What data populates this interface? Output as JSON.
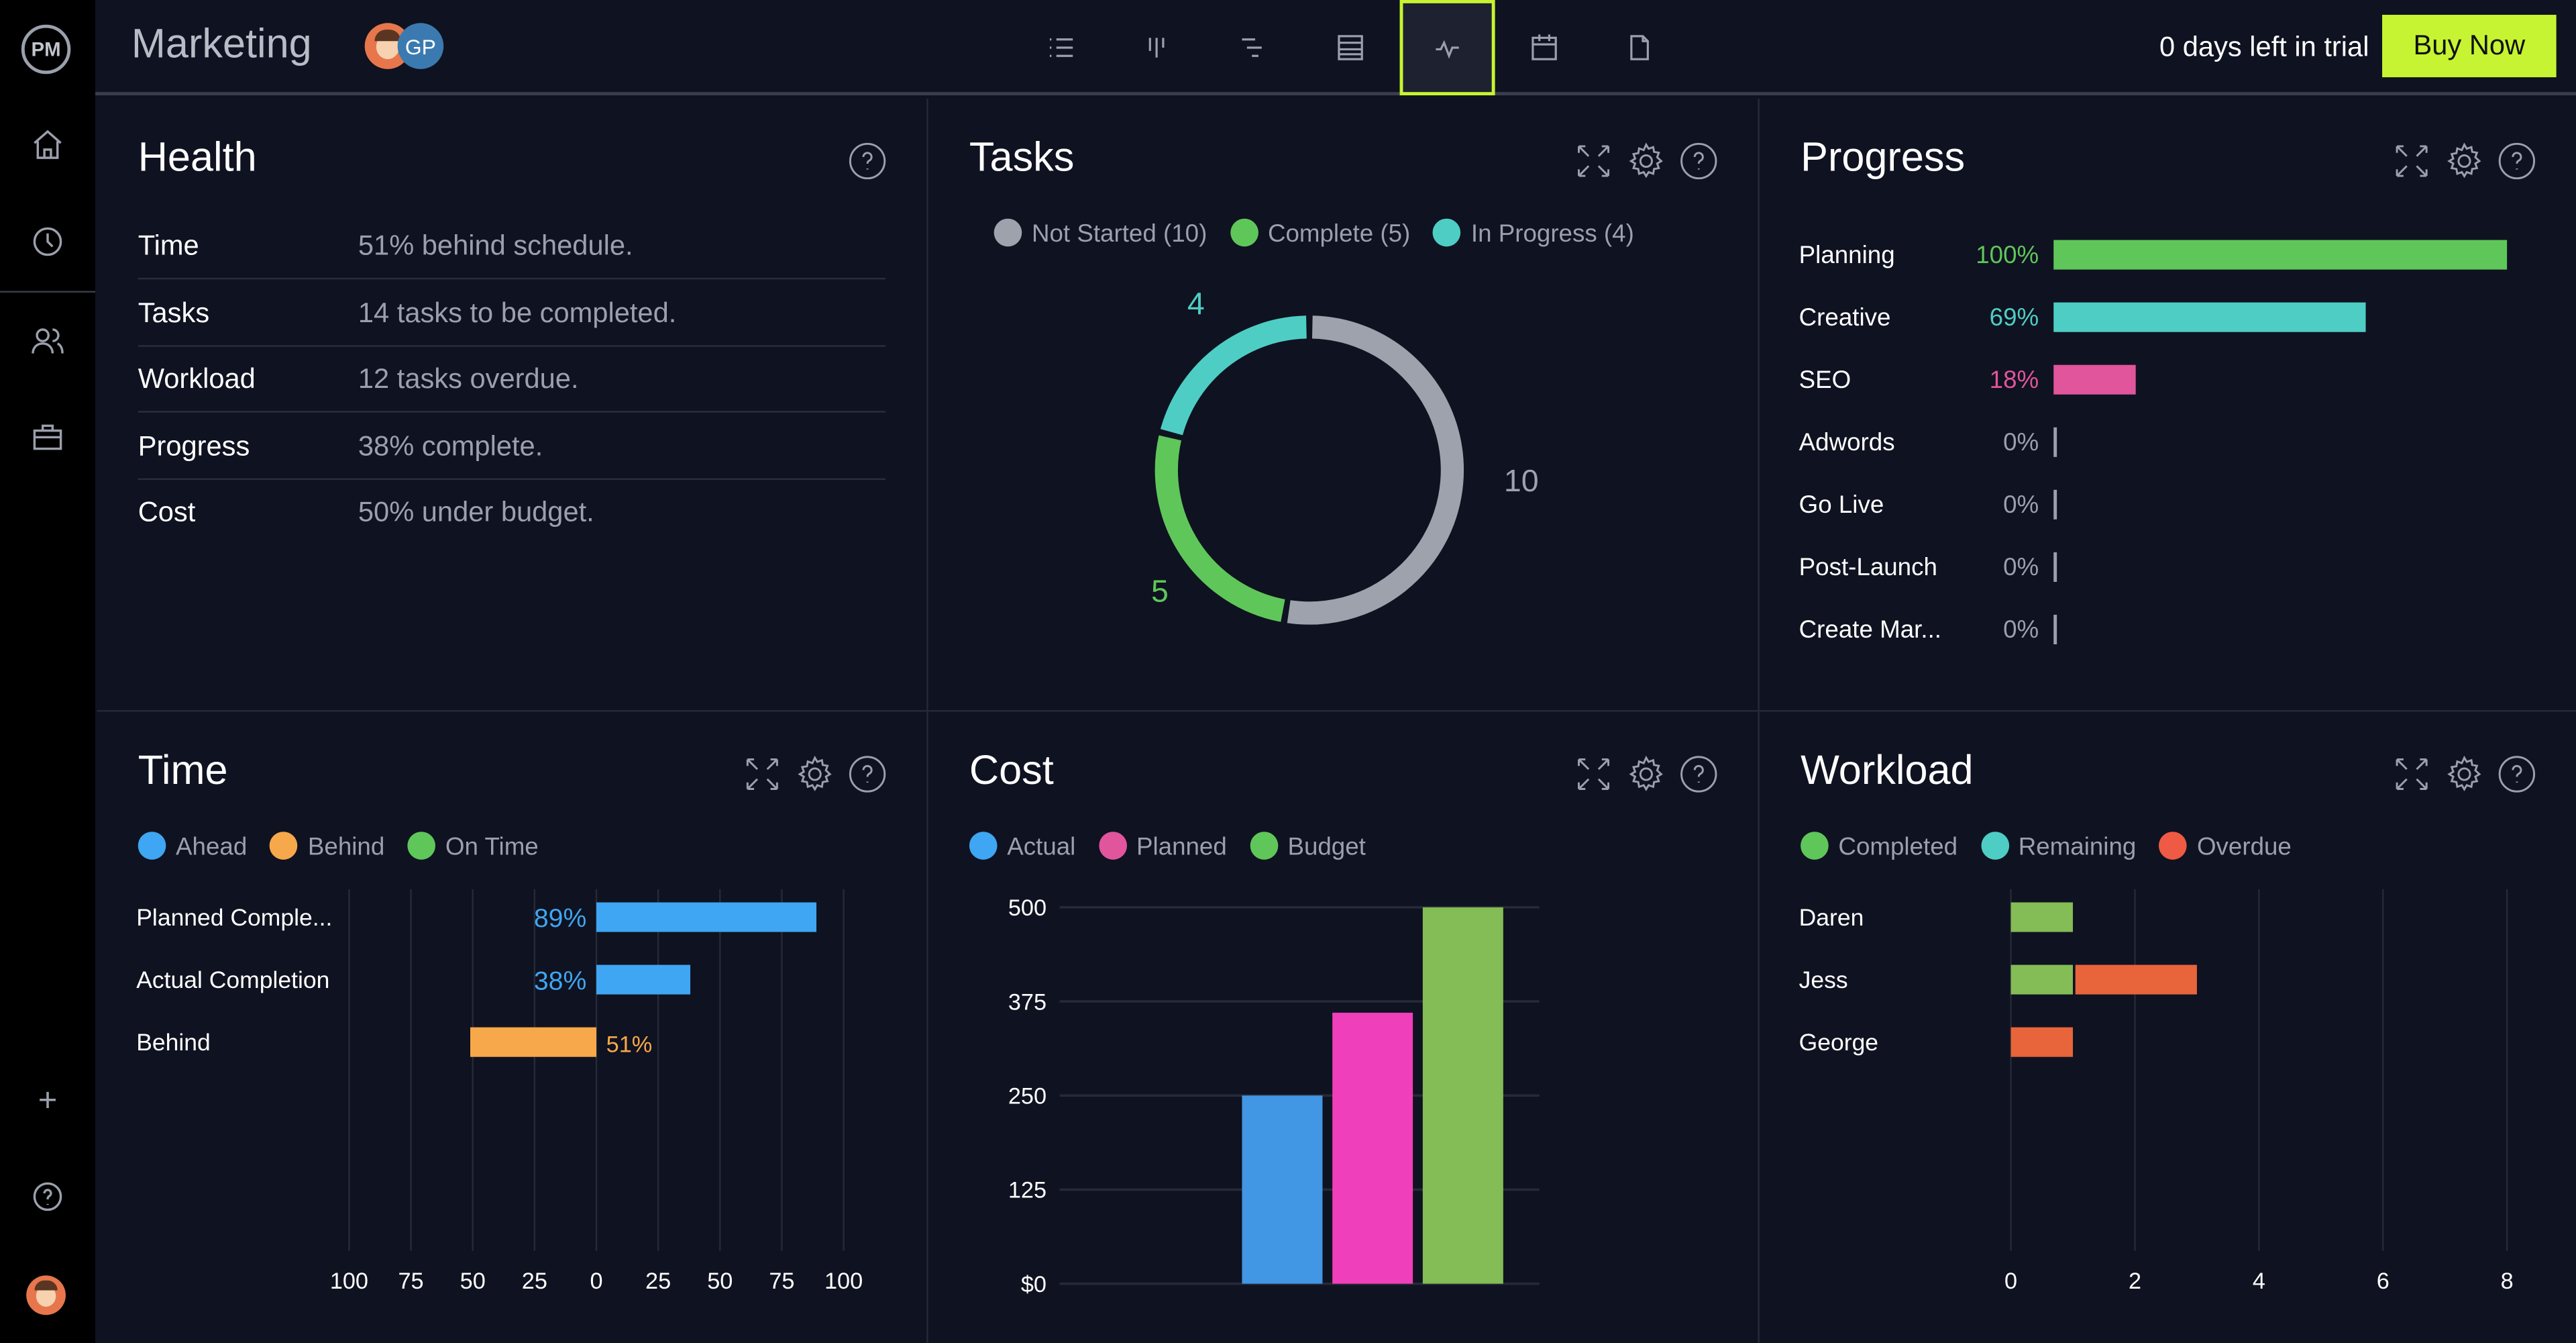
{
  "app": {
    "logo": "PM",
    "project_title": "Marketing",
    "avatar_initials": "GP",
    "trial_text": "0 days left in trial",
    "buy_label": "Buy Now",
    "accent": "#c6f432"
  },
  "toolbar": {
    "views": [
      "list-icon",
      "board-icon",
      "gantt-icon",
      "table-icon",
      "dashboard-icon",
      "calendar-icon",
      "file-icon"
    ],
    "active": "dashboard-icon"
  },
  "sidebar": {
    "items": [
      "home-icon",
      "clock-icon",
      "users-icon",
      "briefcase-icon"
    ],
    "bottom": [
      "plus-icon",
      "help-icon",
      "user-avatar"
    ]
  },
  "health": {
    "title": "Health",
    "rows": [
      {
        "label": "Time",
        "value": "51% behind schedule."
      },
      {
        "label": "Tasks",
        "value": "14 tasks to be completed."
      },
      {
        "label": "Workload",
        "value": "12 tasks overdue."
      },
      {
        "label": "Progress",
        "value": "38% complete."
      },
      {
        "label": "Cost",
        "value": "50% under budget."
      }
    ]
  },
  "tasks": {
    "title": "Tasks",
    "legend": [
      "Not Started (10)",
      "Complete (5)",
      "In Progress (4)"
    ],
    "labels": {
      "not_started": "10",
      "complete": "5",
      "in_progress": "4"
    }
  },
  "progress": {
    "title": "Progress",
    "rows": [
      {
        "label": "Planning",
        "pct": "100%",
        "value": 100,
        "color": "#5fc65a"
      },
      {
        "label": "Creative",
        "pct": "69%",
        "value": 69,
        "color": "#4ecdc4"
      },
      {
        "label": "SEO",
        "pct": "18%",
        "value": 18,
        "color": "#e0559b"
      },
      {
        "label": "Adwords",
        "pct": "0%",
        "value": 0,
        "color": "#9aa0ac"
      },
      {
        "label": "Go Live",
        "pct": "0%",
        "value": 0,
        "color": "#9aa0ac"
      },
      {
        "label": "Post-Launch",
        "pct": "0%",
        "value": 0,
        "color": "#9aa0ac"
      },
      {
        "label": "Create Mar...",
        "pct": "0%",
        "value": 0,
        "color": "#9aa0ac"
      }
    ]
  },
  "time": {
    "title": "Time",
    "legend": [
      "Ahead",
      "Behind",
      "On Time"
    ]
  },
  "cost": {
    "title": "Cost",
    "legend": [
      "Actual",
      "Planned",
      "Budget"
    ]
  },
  "workload": {
    "title": "Workload",
    "legend": [
      "Completed",
      "Remaining",
      "Overdue"
    ]
  },
  "chart_data": [
    {
      "type": "pie",
      "title": "Tasks",
      "donut": true,
      "slices": [
        {
          "name": "Not Started",
          "value": 10,
          "color": "#9ea2ad"
        },
        {
          "name": "Complete",
          "value": 5,
          "color": "#5fc65a"
        },
        {
          "name": "In Progress",
          "value": 4,
          "color": "#4ecdc4"
        }
      ]
    },
    {
      "type": "bar",
      "title": "Time",
      "orientation": "horizontal",
      "categories": [
        "Planned Comple...",
        "Actual Completion",
        "Behind"
      ],
      "values": [
        89,
        38,
        -51
      ],
      "data_labels": [
        "89%",
        "38%",
        "51%"
      ],
      "colors": [
        "#3ea6f2",
        "#3ea6f2",
        "#f7a84a"
      ],
      "xlim": [
        -100,
        100
      ],
      "xticks": [
        "100",
        "75",
        "50",
        "25",
        "0",
        "25",
        "50",
        "75",
        "100"
      ],
      "grid": true
    },
    {
      "type": "bar",
      "title": "Cost",
      "categories": [
        "Actual",
        "Planned",
        "Budget"
      ],
      "values": [
        250,
        360,
        500
      ],
      "colors": [
        "#4197e3",
        "#f03fbb",
        "#84bc56"
      ],
      "ylim": [
        0,
        500
      ],
      "yticks": [
        "$0",
        "125",
        "250",
        "375",
        "500"
      ],
      "grid": true
    },
    {
      "type": "bar",
      "title": "Workload",
      "orientation": "horizontal",
      "stacked": true,
      "categories": [
        "Daren",
        "Jess",
        "George"
      ],
      "series": [
        {
          "name": "Completed",
          "values": [
            1,
            1,
            0
          ],
          "color": "#84bc56"
        },
        {
          "name": "Remaining",
          "values": [
            0,
            0,
            0
          ],
          "color": "#4ecdc4"
        },
        {
          "name": "Overdue",
          "values": [
            0,
            2,
            1
          ],
          "color": "#e8643a"
        }
      ],
      "xlim": [
        0,
        8
      ],
      "xticks": [
        "0",
        "2",
        "4",
        "6",
        "8"
      ],
      "grid": true
    }
  ]
}
